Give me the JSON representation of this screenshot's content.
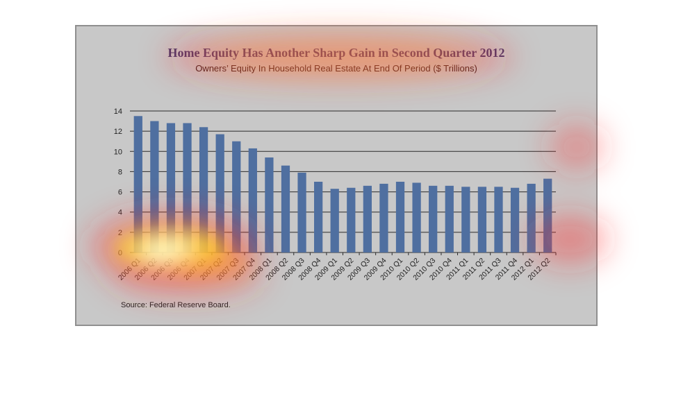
{
  "chart_data": {
    "type": "bar",
    "title": "Home Equity Has Another Sharp Gain in Second Quarter 2012",
    "subtitle": "Owners’ Equity In Household Real Estate At End Of Period ($ Trillions)",
    "source": "Source:  Federal Reserve Board.",
    "categories": [
      "2006 Q1",
      "2006 Q2",
      "2006 Q3",
      "2006 Q4",
      "2007 Q1",
      "2007 Q2",
      "2007 Q3",
      "2007 Q4",
      "2008 Q1",
      "2008 Q2",
      "2008 Q3",
      "2008 Q4",
      "2009 Q1",
      "2009 Q2",
      "2009 Q3",
      "2009 Q4",
      "2010 Q1",
      "2010 Q2",
      "2010 Q3",
      "2010 Q4",
      "2011 Q1",
      "2011 Q2",
      "2011 Q3",
      "2011 Q4",
      "2012 Q1",
      "2012 Q2"
    ],
    "values": [
      13.5,
      13.0,
      12.8,
      12.8,
      12.4,
      11.7,
      11.0,
      10.3,
      9.4,
      8.6,
      7.9,
      7.0,
      6.3,
      6.4,
      6.6,
      6.8,
      7.0,
      6.9,
      6.6,
      6.6,
      6.5,
      6.5,
      6.5,
      6.4,
      6.8,
      7.3
    ],
    "yticks": [
      "0",
      "2",
      "4",
      "6",
      "8",
      "10",
      "12",
      "14"
    ],
    "ylim": [
      0,
      14
    ],
    "grid": true,
    "bar_color": "#4f6fa0"
  }
}
